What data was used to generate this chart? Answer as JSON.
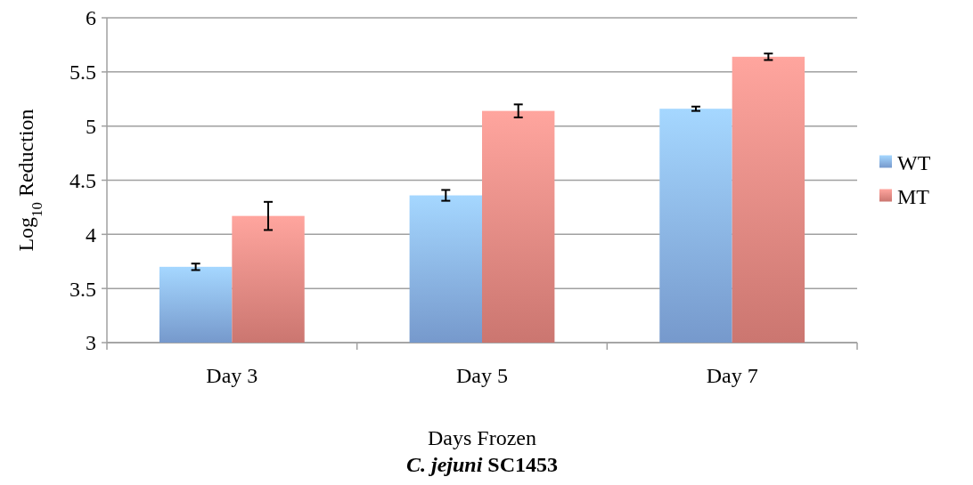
{
  "chart_data": {
    "type": "bar",
    "title": "C. jejuni SC1453",
    "xlabel": "Days Frozen",
    "ylabel": "Log$_{10}$ Reduction",
    "categories": [
      "Day 3",
      "Day 5",
      "Day 7"
    ],
    "series": [
      {
        "name": "WT",
        "color": "#8ab4f0",
        "values": [
          3.7,
          4.36,
          5.16
        ],
        "errors": [
          0.03,
          0.05,
          0.02
        ]
      },
      {
        "name": "MT",
        "color": "#ee8a84",
        "values": [
          4.17,
          5.14,
          5.64
        ],
        "errors": [
          0.13,
          0.06,
          0.03
        ]
      }
    ],
    "ylim": [
      3,
      6
    ],
    "yticks": [
      3,
      3.5,
      4,
      4.5,
      5,
      5.5,
      6
    ],
    "grid": "y",
    "legend": "right"
  }
}
